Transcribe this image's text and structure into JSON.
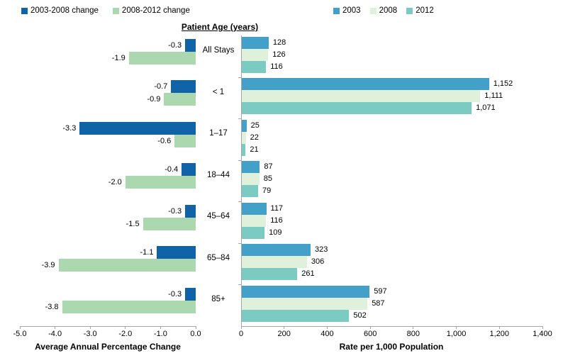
{
  "header": {
    "patient_age_title": "Patient Age (years)"
  },
  "colors": {
    "axis_line": "#a6a6a6",
    "text": "#000000",
    "background": "#ffffff"
  },
  "chart_data": [
    {
      "id": "average-annual-percentage-change",
      "type": "bar",
      "orientation": "horizontal",
      "xlabel": "Average Annual Percentage Change",
      "xlim": [
        -5.0,
        0.0
      ],
      "x_ticks": [
        "-5.0",
        "-4.0",
        "-3.0",
        "-2.0",
        "-1.0",
        "0.0"
      ],
      "grid": false,
      "legend_position": "top-left",
      "value_label_format": "one-decimal",
      "categories": [
        "All Stays",
        "< 1",
        "1–17",
        "18–44",
        "45–64",
        "65–84",
        "85+"
      ],
      "series": [
        {
          "name": "2003-2008 change",
          "color": "#0f63a6",
          "values": [
            -0.3,
            -0.7,
            -3.3,
            -0.4,
            -0.3,
            -1.1,
            -0.3
          ]
        },
        {
          "name": "2008-2012 change",
          "color": "#acd8af",
          "values": [
            -1.9,
            -0.9,
            -0.6,
            -2.0,
            -1.5,
            -3.9,
            -3.8
          ]
        }
      ]
    },
    {
      "id": "rate-per-1000-population",
      "type": "bar",
      "orientation": "horizontal",
      "xlabel": "Rate per 1,000 Population",
      "xlim": [
        0,
        1400
      ],
      "x_ticks": [
        "0",
        "200",
        "400",
        "600",
        "800",
        "1,000",
        "1,200",
        "1,400"
      ],
      "grid": false,
      "legend_position": "top",
      "value_label_format": "thousands-comma",
      "categories": [
        "All Stays",
        "< 1",
        "1–17",
        "18–44",
        "45–64",
        "65–84",
        "85+"
      ],
      "series": [
        {
          "name": "2003",
          "color": "#43a0c8",
          "values": [
            128,
            1152,
            25,
            87,
            117,
            323,
            597
          ]
        },
        {
          "name": "2008",
          "color": "#dff0db",
          "values": [
            126,
            1111,
            22,
            85,
            116,
            306,
            587
          ]
        },
        {
          "name": "2012",
          "color": "#7bcbc3",
          "values": [
            116,
            1071,
            21,
            79,
            109,
            261,
            502
          ]
        }
      ]
    }
  ]
}
